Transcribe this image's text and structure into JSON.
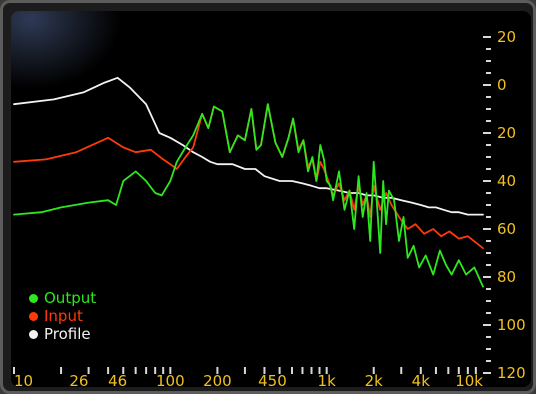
{
  "chart_data": {
    "type": "line",
    "x_scale": "log",
    "xlim": [
      10,
      10000
    ],
    "ylim": [
      -20,
      120
    ],
    "y_inverted": true,
    "grid": false,
    "legend_position": "bottom-left",
    "x_ticks": [
      {
        "value": 10,
        "label": "10"
      },
      {
        "value": 26,
        "label": "26"
      },
      {
        "value": 46,
        "label": "46"
      },
      {
        "value": 100,
        "label": "100"
      },
      {
        "value": 200,
        "label": "200"
      },
      {
        "value": 450,
        "label": "450"
      },
      {
        "value": 1000,
        "label": "1k"
      },
      {
        "value": 2000,
        "label": "2k"
      },
      {
        "value": 4000,
        "label": "4k"
      },
      {
        "value": 10000,
        "label": "10k"
      }
    ],
    "y_ticks": [
      {
        "value": -20,
        "label": "20"
      },
      {
        "value": 0,
        "label": "0"
      },
      {
        "value": 20,
        "label": "20"
      },
      {
        "value": 40,
        "label": "40"
      },
      {
        "value": 60,
        "label": "60"
      },
      {
        "value": 80,
        "label": "80"
      },
      {
        "value": 100,
        "label": "100"
      },
      {
        "value": 120,
        "label": "120"
      }
    ],
    "series": [
      {
        "name": "Output",
        "color": "#2ee81e",
        "points": [
          [
            10,
            54
          ],
          [
            15,
            53
          ],
          [
            20,
            51
          ],
          [
            30,
            49
          ],
          [
            40,
            48
          ],
          [
            45,
            50
          ],
          [
            50,
            40
          ],
          [
            60,
            36
          ],
          [
            70,
            40
          ],
          [
            80,
            45
          ],
          [
            88,
            46
          ],
          [
            100,
            40
          ],
          [
            110,
            32
          ],
          [
            125,
            26
          ],
          [
            140,
            21
          ],
          [
            160,
            12
          ],
          [
            175,
            18
          ],
          [
            190,
            9
          ],
          [
            215,
            11
          ],
          [
            240,
            28
          ],
          [
            270,
            21
          ],
          [
            300,
            23
          ],
          [
            330,
            10
          ],
          [
            355,
            27
          ],
          [
            380,
            25
          ],
          [
            420,
            8
          ],
          [
            470,
            24
          ],
          [
            520,
            30
          ],
          [
            570,
            22
          ],
          [
            610,
            14
          ],
          [
            660,
            28
          ],
          [
            710,
            23
          ],
          [
            760,
            36
          ],
          [
            810,
            30
          ],
          [
            860,
            40
          ],
          [
            910,
            25
          ],
          [
            960,
            31
          ],
          [
            1000,
            40
          ],
          [
            1060,
            42
          ],
          [
            1100,
            48
          ],
          [
            1200,
            36
          ],
          [
            1300,
            52
          ],
          [
            1400,
            44
          ],
          [
            1500,
            60
          ],
          [
            1600,
            38
          ],
          [
            1700,
            55
          ],
          [
            1800,
            45
          ],
          [
            1900,
            65
          ],
          [
            2000,
            32
          ],
          [
            2100,
            50
          ],
          [
            2200,
            70
          ],
          [
            2300,
            40
          ],
          [
            2400,
            58
          ],
          [
            2500,
            44
          ],
          [
            2700,
            48
          ],
          [
            2900,
            65
          ],
          [
            3100,
            55
          ],
          [
            3300,
            72
          ],
          [
            3600,
            67
          ],
          [
            3900,
            76
          ],
          [
            4300,
            71
          ],
          [
            4800,
            79
          ],
          [
            5300,
            69
          ],
          [
            5800,
            75
          ],
          [
            6300,
            79
          ],
          [
            7000,
            73
          ],
          [
            7800,
            79
          ],
          [
            8800,
            76
          ],
          [
            10000,
            84
          ]
        ]
      },
      {
        "name": "Input",
        "color": "#ff3a0a",
        "points": [
          [
            10,
            32
          ],
          [
            16,
            31
          ],
          [
            25,
            28
          ],
          [
            40,
            22
          ],
          [
            50,
            26
          ],
          [
            60,
            28
          ],
          [
            75,
            27
          ],
          [
            90,
            31
          ],
          [
            100,
            33
          ],
          [
            110,
            35
          ],
          [
            125,
            30
          ],
          [
            140,
            26
          ],
          [
            160,
            12
          ],
          [
            175,
            18
          ],
          [
            190,
            9
          ],
          [
            215,
            11
          ],
          [
            240,
            28
          ],
          [
            270,
            21
          ],
          [
            300,
            23
          ],
          [
            330,
            10
          ],
          [
            355,
            27
          ],
          [
            380,
            25
          ],
          [
            420,
            8
          ],
          [
            470,
            24
          ],
          [
            520,
            30
          ],
          [
            570,
            22
          ],
          [
            610,
            14
          ],
          [
            660,
            27
          ],
          [
            710,
            23
          ],
          [
            760,
            34
          ],
          [
            810,
            31
          ],
          [
            860,
            40
          ],
          [
            910,
            32
          ],
          [
            960,
            35
          ],
          [
            1000,
            38
          ],
          [
            1100,
            46
          ],
          [
            1200,
            41
          ],
          [
            1300,
            48
          ],
          [
            1400,
            44
          ],
          [
            1500,
            52
          ],
          [
            1600,
            42
          ],
          [
            1700,
            50
          ],
          [
            1800,
            46
          ],
          [
            1900,
            55
          ],
          [
            2000,
            42
          ],
          [
            2200,
            52
          ],
          [
            2400,
            45
          ],
          [
            2600,
            50
          ],
          [
            2900,
            55
          ],
          [
            3300,
            60
          ],
          [
            3700,
            58
          ],
          [
            4200,
            62
          ],
          [
            4800,
            60
          ],
          [
            5400,
            63
          ],
          [
            6100,
            61
          ],
          [
            7000,
            64
          ],
          [
            8000,
            63
          ],
          [
            10000,
            68
          ]
        ]
      },
      {
        "name": "Profile",
        "color": "#f2f2f2",
        "points": [
          [
            10,
            8
          ],
          [
            18,
            6
          ],
          [
            28,
            3
          ],
          [
            38,
            -1
          ],
          [
            46,
            -3
          ],
          [
            55,
            1
          ],
          [
            70,
            8
          ],
          [
            85,
            20
          ],
          [
            100,
            22
          ],
          [
            120,
            25
          ],
          [
            140,
            28
          ],
          [
            160,
            30
          ],
          [
            180,
            32
          ],
          [
            200,
            33
          ],
          [
            250,
            33
          ],
          [
            300,
            35
          ],
          [
            350,
            35
          ],
          [
            400,
            38
          ],
          [
            500,
            40
          ],
          [
            600,
            40
          ],
          [
            700,
            41
          ],
          [
            800,
            42
          ],
          [
            900,
            43
          ],
          [
            1000,
            43
          ],
          [
            1200,
            44
          ],
          [
            1400,
            45
          ],
          [
            1600,
            45
          ],
          [
            1800,
            46
          ],
          [
            2000,
            46
          ],
          [
            2300,
            47
          ],
          [
            2600,
            47
          ],
          [
            3000,
            48
          ],
          [
            3500,
            49
          ],
          [
            4000,
            50
          ],
          [
            4500,
            51
          ],
          [
            5000,
            51
          ],
          [
            5600,
            52
          ],
          [
            6300,
            53
          ],
          [
            7000,
            53
          ],
          [
            8000,
            54
          ],
          [
            9000,
            54
          ],
          [
            10000,
            54
          ]
        ]
      }
    ]
  }
}
